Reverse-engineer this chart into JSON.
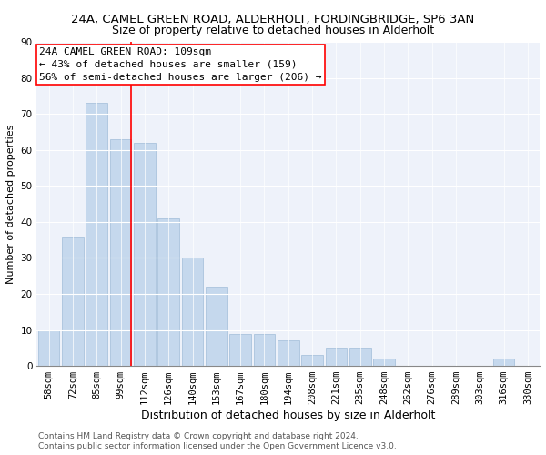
{
  "title1": "24A, CAMEL GREEN ROAD, ALDERHOLT, FORDINGBRIDGE, SP6 3AN",
  "title2": "Size of property relative to detached houses in Alderholt",
  "xlabel": "Distribution of detached houses by size in Alderholt",
  "ylabel": "Number of detached properties",
  "categories": [
    "58sqm",
    "72sqm",
    "85sqm",
    "99sqm",
    "112sqm",
    "126sqm",
    "140sqm",
    "153sqm",
    "167sqm",
    "180sqm",
    "194sqm",
    "208sqm",
    "221sqm",
    "235sqm",
    "248sqm",
    "262sqm",
    "276sqm",
    "289sqm",
    "303sqm",
    "316sqm",
    "330sqm"
  ],
  "values": [
    10,
    36,
    73,
    63,
    62,
    41,
    30,
    22,
    9,
    9,
    7,
    3,
    5,
    5,
    2,
    0,
    0,
    0,
    0,
    2,
    0
  ],
  "bar_color": "#c5d8ed",
  "bar_edgecolor": "#a0bcd8",
  "ylim": [
    0,
    90
  ],
  "yticks": [
    0,
    10,
    20,
    30,
    40,
    50,
    60,
    70,
    80,
    90
  ],
  "marker_color": "red",
  "annotation_lines": [
    "24A CAMEL GREEN ROAD: 109sqm",
    "← 43% of detached houses are smaller (159)",
    "56% of semi-detached houses are larger (206) →"
  ],
  "footer1": "Contains HM Land Registry data © Crown copyright and database right 2024.",
  "footer2": "Contains public sector information licensed under the Open Government Licence v3.0.",
  "background_color": "#eef2fa",
  "grid_color": "#ffffff",
  "title1_fontsize": 9.5,
  "title2_fontsize": 9,
  "xlabel_fontsize": 9,
  "ylabel_fontsize": 8,
  "tick_fontsize": 7.5,
  "annotation_fontsize": 8,
  "footer_fontsize": 6.5
}
